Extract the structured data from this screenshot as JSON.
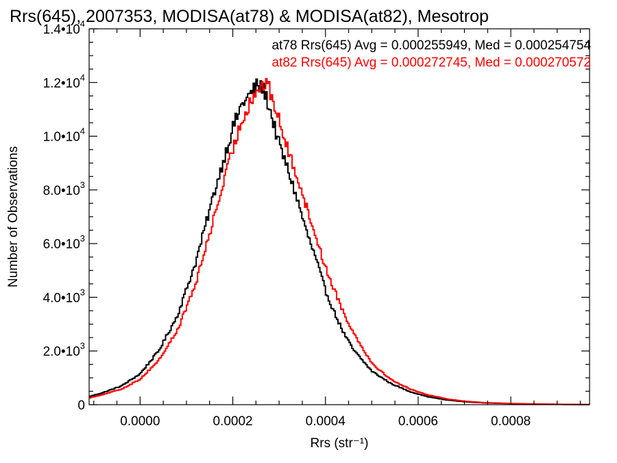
{
  "chart_data": {
    "type": "histogram",
    "title": "Rrs(645), 2007353, MODISA(at78) & MODISA(at82), Mesotrop",
    "xlabel": "Rrs (str⁻¹)",
    "ylabel": "Number of Observations",
    "xlim": [
      -0.00011,
      0.00097
    ],
    "ylim": [
      0,
      14000
    ],
    "grid": false,
    "x_ticks": [
      {
        "value": 0.0,
        "label": "0.0000"
      },
      {
        "value": 0.0002,
        "label": "0.0002"
      },
      {
        "value": 0.0004,
        "label": "0.0004"
      },
      {
        "value": 0.0006,
        "label": "0.0006"
      },
      {
        "value": 0.0008,
        "label": "0.0008"
      }
    ],
    "y_ticks": [
      {
        "value": 0,
        "mantissa": "0",
        "exponent": ""
      },
      {
        "value": 2000,
        "mantissa": "2.0•10",
        "exponent": "3"
      },
      {
        "value": 4000,
        "mantissa": "4.0•10",
        "exponent": "3"
      },
      {
        "value": 6000,
        "mantissa": "6.0•10",
        "exponent": "3"
      },
      {
        "value": 8000,
        "mantissa": "8.0•10",
        "exponent": "3"
      },
      {
        "value": 10000,
        "mantissa": "1.0•10",
        "exponent": "4"
      },
      {
        "value": 12000,
        "mantissa": "1.2•10",
        "exponent": "4"
      },
      {
        "value": 14000,
        "mantissa": "1.4•10",
        "exponent": "4"
      }
    ],
    "legend_placement": "top-right",
    "series": [
      {
        "name": "at78",
        "color": "#000000",
        "legend": "at78 Rrs(645) Avg = 0.000255949, Med = 0.000254754",
        "x": [
          -0.00011,
          -8e-05,
          -4e-05,
          0.0,
          4e-05,
          8e-05,
          0.00012,
          0.00016,
          0.0002,
          0.00022,
          0.00024,
          0.00025,
          0.00026,
          0.00027,
          0.00028,
          0.0003,
          0.00032,
          0.00034,
          0.00036,
          0.00038,
          0.0004,
          0.00042,
          0.00044,
          0.00046,
          0.0005,
          0.00054,
          0.00058,
          0.00062,
          0.00066,
          0.0007,
          0.00074,
          0.0008,
          0.00086,
          0.00092,
          0.00097
        ],
        "values": [
          300,
          450,
          700,
          1150,
          2000,
          3300,
          5300,
          7900,
          10300,
          11200,
          11600,
          11850,
          11900,
          11600,
          11000,
          9700,
          8700,
          7600,
          6400,
          5400,
          4250,
          3400,
          2650,
          2050,
          1250,
          800,
          500,
          300,
          180,
          110,
          70,
          40,
          20,
          10,
          5
        ]
      },
      {
        "name": "at82",
        "color": "#ff0000",
        "legend": "at82 Rrs(645) Avg = 0.000272745, Med = 0.000270572",
        "x": [
          -0.00011,
          -8e-05,
          -4e-05,
          0.0,
          4e-05,
          8e-05,
          0.00012,
          0.00016,
          0.0002,
          0.00022,
          0.00024,
          0.00026,
          0.00027,
          0.00028,
          0.0003,
          0.00032,
          0.00034,
          0.00036,
          0.00038,
          0.0004,
          0.00042,
          0.00044,
          0.00046,
          0.0005,
          0.00054,
          0.00058,
          0.00062,
          0.00066,
          0.0007,
          0.00074,
          0.0008,
          0.00086,
          0.00092,
          0.00097
        ],
        "values": [
          250,
          380,
          580,
          950,
          1650,
          2750,
          4500,
          7000,
          9500,
          10600,
          11400,
          11850,
          11950,
          11700,
          10600,
          9400,
          8500,
          7300,
          6250,
          5100,
          4250,
          3400,
          2700,
          1550,
          950,
          600,
          370,
          220,
          130,
          80,
          45,
          25,
          12,
          5
        ]
      }
    ]
  }
}
